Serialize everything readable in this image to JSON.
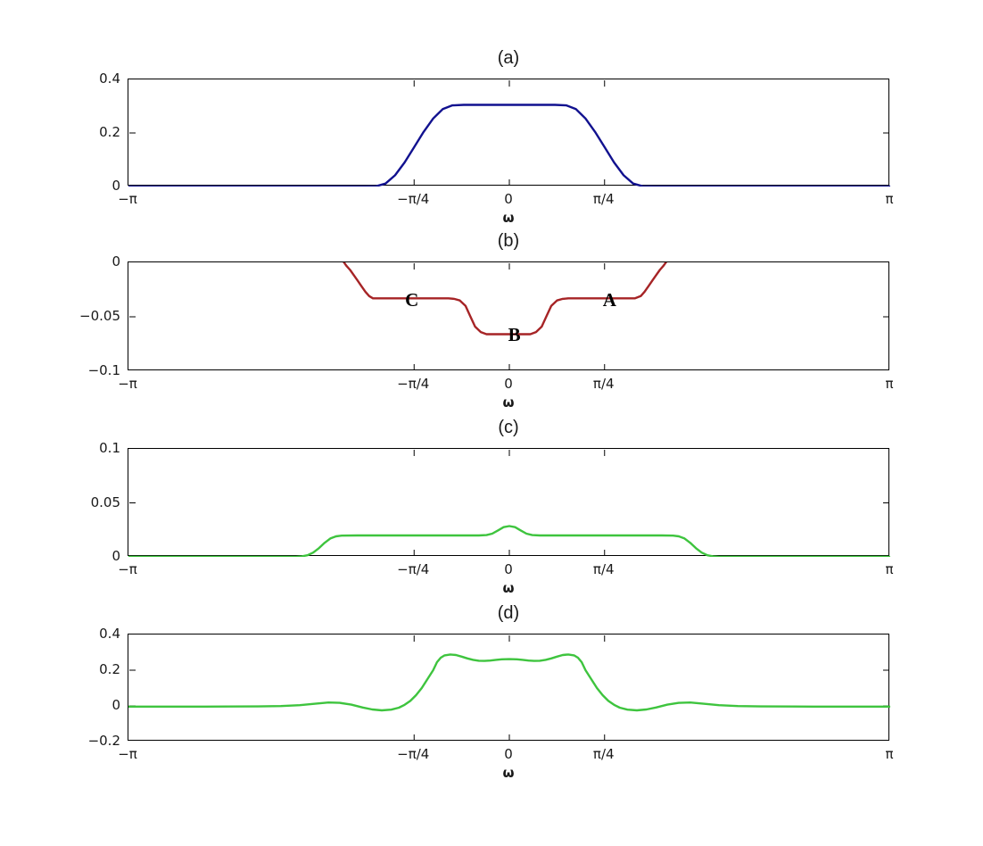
{
  "figure": {
    "background": "#ffffff"
  },
  "chart_data": [
    {
      "type": "line",
      "title": "(a)",
      "xlabel": "ω",
      "x_unit": "pi",
      "xlim": [
        -1,
        1
      ],
      "ylim": [
        0,
        0.4
      ],
      "grid": false,
      "xticks": [
        {
          "v": -1,
          "label": "−π"
        },
        {
          "v": -0.25,
          "label": "−π/4"
        },
        {
          "v": 0,
          "label": "0"
        },
        {
          "v": 0.25,
          "label": "π/4"
        },
        {
          "v": 1,
          "label": "π"
        }
      ],
      "yticks": [
        {
          "v": 0,
          "label": "0"
        },
        {
          "v": 0.2,
          "label": "0.2"
        },
        {
          "v": 0.4,
          "label": "0.4"
        }
      ],
      "series": [
        {
          "name": "blue-curve",
          "color": "#11118F",
          "points": [
            [
              -1,
              0
            ],
            [
              -0.8,
              0
            ],
            [
              -0.6,
              0
            ],
            [
              -0.45,
              0
            ],
            [
              -0.38,
              0
            ],
            [
              -0.35,
              0.001
            ],
            [
              -0.325,
              0.011
            ],
            [
              -0.3,
              0.042
            ],
            [
              -0.275,
              0.09
            ],
            [
              -0.25,
              0.147
            ],
            [
              -0.225,
              0.204
            ],
            [
              -0.2,
              0.254
            ],
            [
              -0.175,
              0.289
            ],
            [
              -0.15,
              0.303
            ],
            [
              -0.12,
              0.305
            ],
            [
              -0.06,
              0.305
            ],
            [
              0,
              0.305
            ],
            [
              0.06,
              0.305
            ],
            [
              0.12,
              0.305
            ],
            [
              0.15,
              0.303
            ],
            [
              0.175,
              0.289
            ],
            [
              0.2,
              0.254
            ],
            [
              0.225,
              0.204
            ],
            [
              0.25,
              0.147
            ],
            [
              0.275,
              0.09
            ],
            [
              0.3,
              0.042
            ],
            [
              0.325,
              0.011
            ],
            [
              0.35,
              0.001
            ],
            [
              0.38,
              0
            ],
            [
              0.45,
              0
            ],
            [
              0.6,
              0
            ],
            [
              0.8,
              0
            ],
            [
              1,
              0
            ]
          ]
        }
      ],
      "annotations": []
    },
    {
      "type": "line",
      "title": "(b)",
      "xlabel": "ω",
      "x_unit": "pi",
      "xlim": [
        -1,
        1
      ],
      "ylim": [
        -0.1,
        0
      ],
      "grid": false,
      "xticks": [
        {
          "v": -1,
          "label": "−π"
        },
        {
          "v": -0.25,
          "label": "−π/4"
        },
        {
          "v": 0,
          "label": "0"
        },
        {
          "v": 0.25,
          "label": "π/4"
        },
        {
          "v": 1,
          "label": "π"
        }
      ],
      "yticks": [
        {
          "v": 0,
          "label": "0"
        },
        {
          "v": -0.05,
          "label": "−0.05"
        },
        {
          "v": -0.1,
          "label": "−0.1"
        }
      ],
      "series": [
        {
          "name": "red-curve",
          "color": "#A62426",
          "points": [
            [
              -0.452,
              0.01
            ],
            [
              -0.444,
              0.005
            ],
            [
              -0.436,
              0.001
            ],
            [
              -0.428,
              -0.003
            ],
            [
              -0.418,
              -0.007
            ],
            [
              -0.408,
              -0.012
            ],
            [
              -0.398,
              -0.017
            ],
            [
              -0.388,
              -0.022
            ],
            [
              -0.378,
              -0.027
            ],
            [
              -0.368,
              -0.031
            ],
            [
              -0.358,
              -0.033
            ],
            [
              -0.33,
              -0.033
            ],
            [
              -0.28,
              -0.033
            ],
            [
              -0.22,
              -0.033
            ],
            [
              -0.16,
              -0.033
            ],
            [
              -0.145,
              -0.0335
            ],
            [
              -0.13,
              -0.035
            ],
            [
              -0.115,
              -0.04
            ],
            [
              -0.1025,
              -0.0495
            ],
            [
              -0.09,
              -0.059
            ],
            [
              -0.075,
              -0.064
            ],
            [
              -0.06,
              -0.066
            ],
            [
              -0.03,
              -0.066
            ],
            [
              0,
              -0.066
            ],
            [
              0.03,
              -0.066
            ],
            [
              0.055,
              -0.066
            ],
            [
              0.07,
              -0.064
            ],
            [
              0.085,
              -0.059
            ],
            [
              0.0975,
              -0.0495
            ],
            [
              0.11,
              -0.04
            ],
            [
              0.125,
              -0.035
            ],
            [
              0.14,
              -0.0335
            ],
            [
              0.155,
              -0.033
            ],
            [
              0.2,
              -0.033
            ],
            [
              0.26,
              -0.033
            ],
            [
              0.33,
              -0.033
            ],
            [
              0.345,
              -0.031
            ],
            [
              0.355,
              -0.027
            ],
            [
              0.365,
              -0.022
            ],
            [
              0.375,
              -0.017
            ],
            [
              0.385,
              -0.012
            ],
            [
              0.395,
              -0.007
            ],
            [
              0.405,
              -0.003
            ],
            [
              0.413,
              0.001
            ],
            [
              0.421,
              0.005
            ],
            [
              0.429,
              0.01
            ]
          ]
        }
      ],
      "annotations": [
        {
          "text": "C",
          "x": -0.256,
          "y": -0.0345
        },
        {
          "text": "B",
          "x": 0.013,
          "y": -0.0665
        },
        {
          "text": "A",
          "x": 0.263,
          "y": -0.0345
        }
      ]
    },
    {
      "type": "line",
      "title": "(c)",
      "xlabel": "ω",
      "x_unit": "pi",
      "xlim": [
        -1,
        1
      ],
      "ylim": [
        0,
        0.1
      ],
      "grid": false,
      "xticks": [
        {
          "v": -1,
          "label": "−π"
        },
        {
          "v": -0.25,
          "label": "−π/4"
        },
        {
          "v": 0,
          "label": "0"
        },
        {
          "v": 0.25,
          "label": "π/4"
        },
        {
          "v": 1,
          "label": "π"
        }
      ],
      "yticks": [
        {
          "v": 0,
          "label": "0"
        },
        {
          "v": 0.05,
          "label": "0.05"
        },
        {
          "v": 0.1,
          "label": "0.1"
        }
      ],
      "series": [
        {
          "name": "green-curve",
          "color": "#3EC43E",
          "points": [
            [
              -1,
              0
            ],
            [
              -0.8,
              0
            ],
            [
              -0.65,
              0
            ],
            [
              -0.56,
              0
            ],
            [
              -0.545,
              0.0005
            ],
            [
              -0.53,
              0.0015
            ],
            [
              -0.515,
              0.004
            ],
            [
              -0.5,
              0.008
            ],
            [
              -0.485,
              0.013
            ],
            [
              -0.47,
              0.017
            ],
            [
              -0.455,
              0.019
            ],
            [
              -0.44,
              0.0197
            ],
            [
              -0.4,
              0.0198
            ],
            [
              -0.33,
              0.0198
            ],
            [
              -0.26,
              0.0198
            ],
            [
              -0.19,
              0.0198
            ],
            [
              -0.12,
              0.0198
            ],
            [
              -0.08,
              0.0198
            ],
            [
              -0.06,
              0.0202
            ],
            [
              -0.045,
              0.0215
            ],
            [
              -0.03,
              0.0245
            ],
            [
              -0.015,
              0.0275
            ],
            [
              0,
              0.0285
            ],
            [
              0.015,
              0.0275
            ],
            [
              0.03,
              0.0245
            ],
            [
              0.045,
              0.0215
            ],
            [
              0.06,
              0.0202
            ],
            [
              0.08,
              0.0198
            ],
            [
              0.12,
              0.0198
            ],
            [
              0.19,
              0.0198
            ],
            [
              0.26,
              0.0198
            ],
            [
              0.33,
              0.0198
            ],
            [
              0.4,
              0.0198
            ],
            [
              0.43,
              0.0197
            ],
            [
              0.445,
              0.019
            ],
            [
              0.46,
              0.017
            ],
            [
              0.475,
              0.013
            ],
            [
              0.49,
              0.008
            ],
            [
              0.505,
              0.004
            ],
            [
              0.52,
              0.0015
            ],
            [
              0.535,
              0.0005
            ],
            [
              0.55,
              0
            ],
            [
              0.7,
              0
            ],
            [
              0.85,
              0
            ],
            [
              1,
              0
            ]
          ]
        }
      ],
      "annotations": []
    },
    {
      "type": "line",
      "title": "(d)",
      "xlabel": "ω",
      "x_unit": "pi",
      "xlim": [
        -1,
        1
      ],
      "ylim": [
        -0.2,
        0.4
      ],
      "grid": false,
      "xticks": [
        {
          "v": -1,
          "label": "−π"
        },
        {
          "v": -0.25,
          "label": "−π/4"
        },
        {
          "v": 0,
          "label": "0"
        },
        {
          "v": 0.25,
          "label": "π/4"
        },
        {
          "v": 1,
          "label": "π"
        }
      ],
      "yticks": [
        {
          "v": -0.2,
          "label": "−0.2"
        },
        {
          "v": 0,
          "label": "0"
        },
        {
          "v": 0.2,
          "label": "0.2"
        },
        {
          "v": 0.4,
          "label": "0.4"
        }
      ],
      "series": [
        {
          "name": "green-curve",
          "color": "#3EC43E",
          "points": [
            [
              -1,
              -0.004
            ],
            [
              -0.8,
              -0.004
            ],
            [
              -0.66,
              -0.003
            ],
            [
              -0.6,
              -0.001
            ],
            [
              -0.55,
              0.004
            ],
            [
              -0.51,
              0.012
            ],
            [
              -0.475,
              0.019
            ],
            [
              -0.445,
              0.017
            ],
            [
              -0.415,
              0.007
            ],
            [
              -0.385,
              -0.009
            ],
            [
              -0.36,
              -0.02
            ],
            [
              -0.335,
              -0.025
            ],
            [
              -0.31,
              -0.021
            ],
            [
              -0.29,
              -0.01
            ],
            [
              -0.275,
              0.006
            ],
            [
              -0.26,
              0.028
            ],
            [
              -0.245,
              0.06
            ],
            [
              -0.23,
              0.1
            ],
            [
              -0.215,
              0.15
            ],
            [
              -0.2,
              0.2
            ],
            [
              -0.19,
              0.245
            ],
            [
              -0.18,
              0.27
            ],
            [
              -0.17,
              0.283
            ],
            [
              -0.155,
              0.288
            ],
            [
              -0.14,
              0.285
            ],
            [
              -0.125,
              0.276
            ],
            [
              -0.11,
              0.266
            ],
            [
              -0.095,
              0.258
            ],
            [
              -0.08,
              0.253
            ],
            [
              -0.065,
              0.252
            ],
            [
              -0.05,
              0.254
            ],
            [
              -0.035,
              0.258
            ],
            [
              -0.02,
              0.261
            ],
            [
              0,
              0.262
            ],
            [
              0.02,
              0.261
            ],
            [
              0.035,
              0.258
            ],
            [
              0.05,
              0.254
            ],
            [
              0.065,
              0.252
            ],
            [
              0.08,
              0.253
            ],
            [
              0.095,
              0.258
            ],
            [
              0.11,
              0.266
            ],
            [
              0.125,
              0.276
            ],
            [
              0.14,
              0.285
            ],
            [
              0.155,
              0.288
            ],
            [
              0.17,
              0.283
            ],
            [
              0.18,
              0.27
            ],
            [
              0.19,
              0.245
            ],
            [
              0.2,
              0.2
            ],
            [
              0.215,
              0.15
            ],
            [
              0.23,
              0.1
            ],
            [
              0.245,
              0.06
            ],
            [
              0.26,
              0.028
            ],
            [
              0.275,
              0.006
            ],
            [
              0.29,
              -0.01
            ],
            [
              0.31,
              -0.021
            ],
            [
              0.335,
              -0.025
            ],
            [
              0.36,
              -0.02
            ],
            [
              0.385,
              -0.009
            ],
            [
              0.415,
              0.007
            ],
            [
              0.445,
              0.017
            ],
            [
              0.475,
              0.019
            ],
            [
              0.51,
              0.012
            ],
            [
              0.55,
              0.004
            ],
            [
              0.6,
              -0.001
            ],
            [
              0.66,
              -0.003
            ],
            [
              0.8,
              -0.004
            ],
            [
              1,
              -0.004
            ]
          ]
        }
      ],
      "annotations": []
    }
  ]
}
